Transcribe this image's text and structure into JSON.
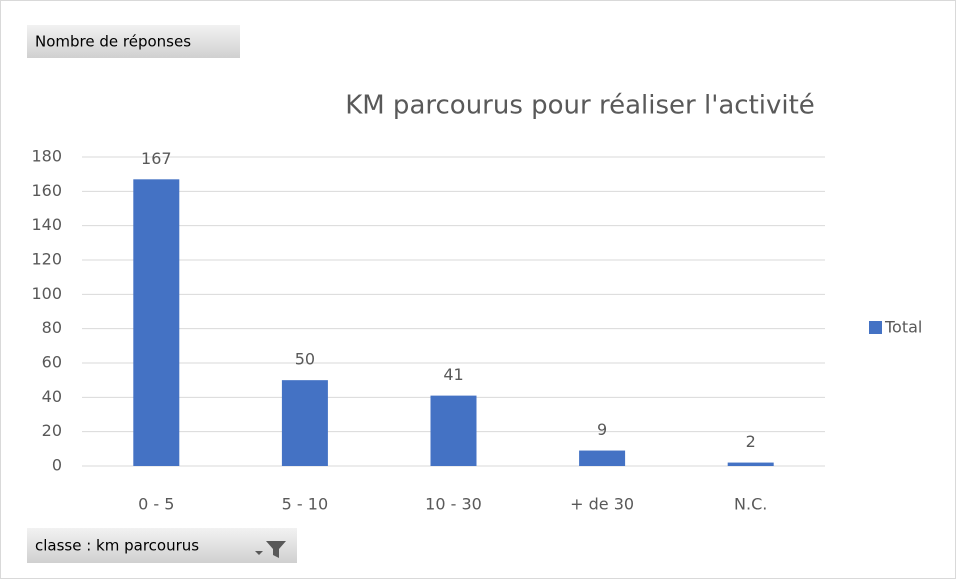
{
  "chart_data": {
    "type": "bar",
    "title": "KM parcourus pour réaliser l'activité",
    "value_field_button": "Nombre de réponses",
    "axis_field_button": "classe : km parcourus",
    "categories": [
      "0 - 5",
      "5 - 10",
      "10 - 30",
      "+ de 30",
      "N.C."
    ],
    "series": [
      {
        "name": "Total",
        "color": "#4472c4",
        "values": [
          167,
          50,
          41,
          9,
          2
        ]
      }
    ],
    "ylim": [
      0,
      180
    ],
    "yticks": [
      0,
      20,
      40,
      60,
      80,
      100,
      120,
      140,
      160,
      180
    ],
    "grid": true,
    "legend": "right"
  }
}
